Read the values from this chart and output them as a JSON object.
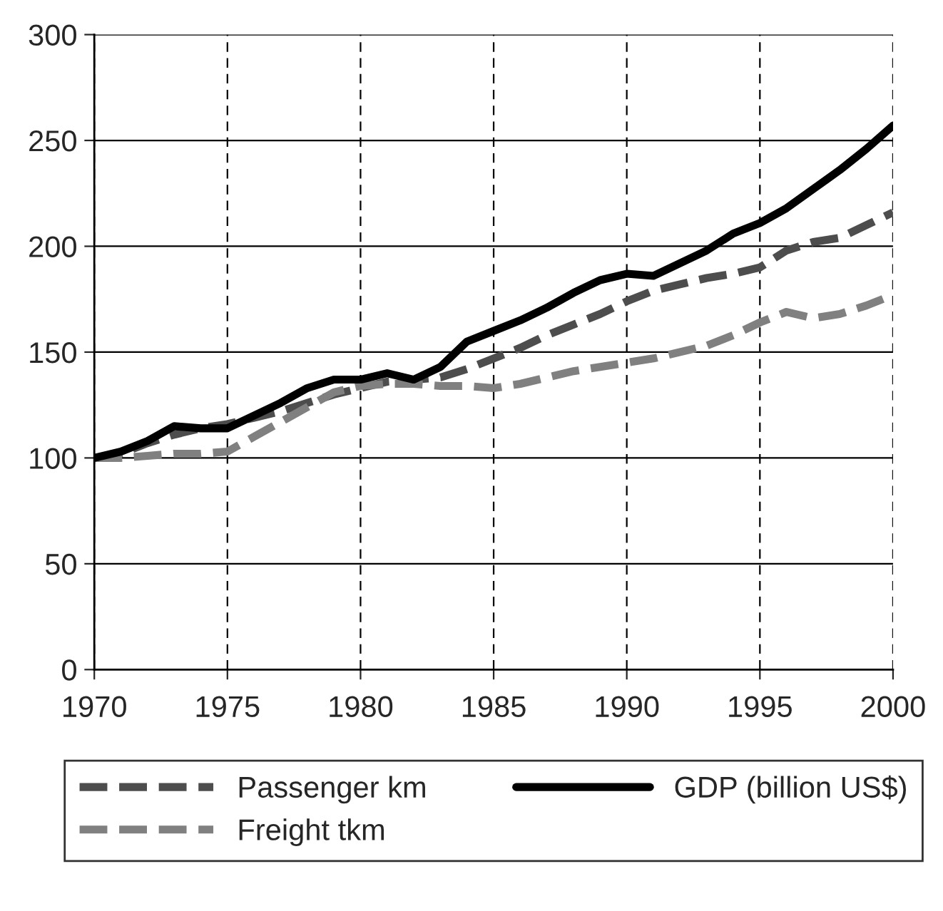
{
  "chart_data": {
    "type": "line",
    "x": [
      1970,
      1971,
      1972,
      1973,
      1974,
      1975,
      1976,
      1977,
      1978,
      1979,
      1980,
      1981,
      1982,
      1983,
      1984,
      1985,
      1986,
      1987,
      1988,
      1989,
      1990,
      1991,
      1992,
      1993,
      1994,
      1995,
      1996,
      1997,
      1998,
      1999,
      2000
    ],
    "series": [
      {
        "name": "Passenger km",
        "color": "#4d4d4d",
        "line_style": "dashed",
        "values": [
          100,
          102,
          107,
          111,
          114,
          116,
          119,
          122,
          126,
          130,
          133,
          136,
          137,
          138,
          142,
          147,
          152,
          158,
          163,
          168,
          174,
          179,
          182,
          185,
          187,
          190,
          198,
          202,
          204,
          210,
          216
        ]
      },
      {
        "name": "Freight tkm",
        "color": "#808080",
        "line_style": "dashed",
        "values": [
          100,
          100,
          101,
          102,
          102,
          103,
          110,
          117,
          124,
          131,
          134,
          135,
          135,
          134,
          134,
          133,
          135,
          138,
          141,
          143,
          145,
          147,
          150,
          153,
          158,
          164,
          169,
          166,
          168,
          172,
          177
        ]
      },
      {
        "name": "GDP (billion US$)",
        "color": "#000000",
        "line_style": "solid",
        "values": [
          100,
          103,
          108,
          115,
          114,
          114,
          120,
          126,
          133,
          137,
          137,
          140,
          137,
          143,
          155,
          160,
          165,
          171,
          178,
          184,
          187,
          186,
          192,
          198,
          206,
          211,
          218,
          227,
          236,
          246,
          257
        ]
      }
    ],
    "xlim": [
      1970,
      2000
    ],
    "xticks": [
      1970,
      1975,
      1980,
      1985,
      1990,
      1995,
      2000
    ],
    "ylim": [
      0,
      300
    ],
    "yticks": [
      0,
      50,
      100,
      150,
      200,
      250,
      300
    ],
    "grid": true,
    "legend": "bottom",
    "marker": "none"
  }
}
